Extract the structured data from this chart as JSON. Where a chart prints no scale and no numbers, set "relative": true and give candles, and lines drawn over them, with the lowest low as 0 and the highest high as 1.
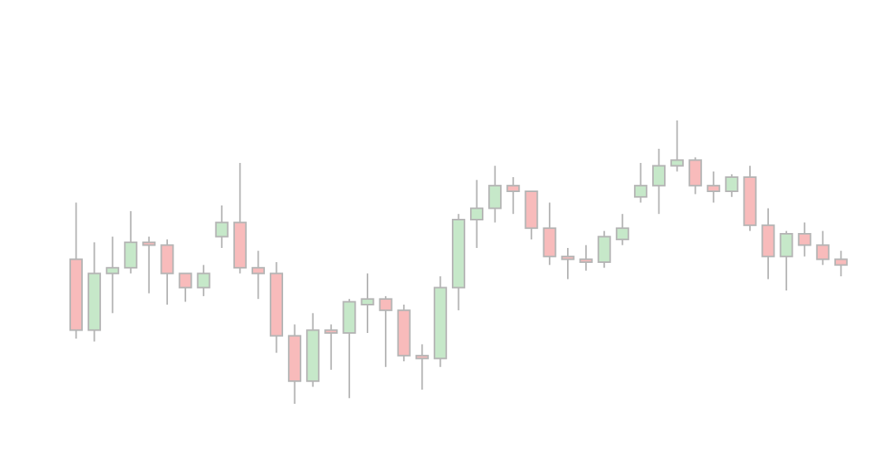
{
  "chart_data": {
    "type": "candlestick",
    "relative": true,
    "tick_labels": false,
    "grid": false,
    "legend": false,
    "categories": [
      null,
      null,
      null,
      null,
      null,
      null,
      null,
      null,
      null,
      null,
      null,
      null,
      null,
      null,
      null,
      null,
      null,
      null,
      null,
      null,
      null,
      null,
      null,
      null,
      null,
      null,
      null,
      null,
      null,
      null,
      null,
      null,
      null,
      null,
      null,
      null,
      null,
      null,
      null,
      null,
      null,
      null,
      null
    ],
    "ohlc": [
      [
        0.51,
        0.71,
        0.23,
        0.26
      ],
      [
        0.26,
        0.57,
        0.22,
        0.46
      ],
      [
        0.46,
        0.59,
        0.32,
        0.48
      ],
      [
        0.48,
        0.68,
        0.46,
        0.57
      ],
      [
        0.57,
        0.59,
        0.39,
        0.56
      ],
      [
        0.56,
        0.58,
        0.35,
        0.46
      ],
      [
        0.46,
        0.46,
        0.36,
        0.41
      ],
      [
        0.41,
        0.49,
        0.38,
        0.46
      ],
      [
        0.59,
        0.7,
        0.55,
        0.64
      ],
      [
        0.64,
        0.85,
        0.46,
        0.48
      ],
      [
        0.48,
        0.54,
        0.37,
        0.46
      ],
      [
        0.46,
        0.5,
        0.18,
        0.24
      ],
      [
        0.24,
        0.28,
        0,
        0.08
      ],
      [
        0.08,
        0.32,
        0.06,
        0.26
      ],
      [
        0.26,
        0.28,
        0.12,
        0.25
      ],
      [
        0.25,
        0.37,
        0.02,
        0.36
      ],
      [
        0.35,
        0.46,
        0.25,
        0.37
      ],
      [
        0.37,
        0.38,
        0.13,
        0.33
      ],
      [
        0.33,
        0.35,
        0.15,
        0.17
      ],
      [
        0.17,
        0.21,
        0.05,
        0.16
      ],
      [
        0.16,
        0.45,
        0.13,
        0.41
      ],
      [
        0.41,
        0.67,
        0.33,
        0.65
      ],
      [
        0.65,
        0.79,
        0.55,
        0.69
      ],
      [
        0.69,
        0.84,
        0.64,
        0.77
      ],
      [
        0.77,
        0.8,
        0.67,
        0.75
      ],
      [
        0.75,
        0.75,
        0.58,
        0.62
      ],
      [
        0.62,
        0.71,
        0.49,
        0.52
      ],
      [
        0.52,
        0.55,
        0.44,
        0.51
      ],
      [
        0.51,
        0.56,
        0.47,
        0.5
      ],
      [
        0.5,
        0.61,
        0.48,
        0.59
      ],
      [
        0.58,
        0.67,
        0.56,
        0.62
      ],
      [
        0.73,
        0.85,
        0.71,
        0.77
      ],
      [
        0.77,
        0.9,
        0.67,
        0.84
      ],
      [
        0.84,
        1,
        0.82,
        0.86
      ],
      [
        0.86,
        0.87,
        0.74,
        0.77
      ],
      [
        0.77,
        0.82,
        0.71,
        0.75
      ],
      [
        0.75,
        0.81,
        0.73,
        0.8
      ],
      [
        0.8,
        0.84,
        0.61,
        0.63
      ],
      [
        0.63,
        0.69,
        0.44,
        0.52
      ],
      [
        0.52,
        0.61,
        0.4,
        0.6
      ],
      [
        0.6,
        0.64,
        0.52,
        0.56
      ],
      [
        0.56,
        0.61,
        0.49,
        0.51
      ],
      [
        0.51,
        0.54,
        0.45,
        0.49
      ]
    ],
    "colors": [
      "#f8bbbb",
      "#c6e8c9",
      "#c6e8c9",
      "#c6e8c9",
      "#f8bbbb",
      "#f8bbbb",
      "#f8bbbb",
      "#c6e8c9",
      "#c6e8c9",
      "#f8bbbb",
      "#f8bbbb",
      "#f8bbbb",
      "#f8bbbb",
      "#c6e8c9",
      "#f8bbbb",
      "#c6e8c9",
      "#c6e8c9",
      "#f8bbbb",
      "#f8bbbb",
      "#f8bbbb",
      "#c6e8c9",
      "#c6e8c9",
      "#c6e8c9",
      "#c6e8c9",
      "#f8bbbb",
      "#f8bbbb",
      "#f8bbbb",
      "#f8bbbb",
      "#f8bbbb",
      "#c6e8c9",
      "#c6e8c9",
      "#c6e8c9",
      "#c6e8c9",
      "#c6e8c9",
      "#f8bbbb",
      "#f8bbbb",
      "#c6e8c9",
      "#f8bbbb",
      "#f8bbbb",
      "#c6e8c9",
      "#f8bbbb",
      "#f8bbbb",
      "#f8bbbb"
    ]
  }
}
